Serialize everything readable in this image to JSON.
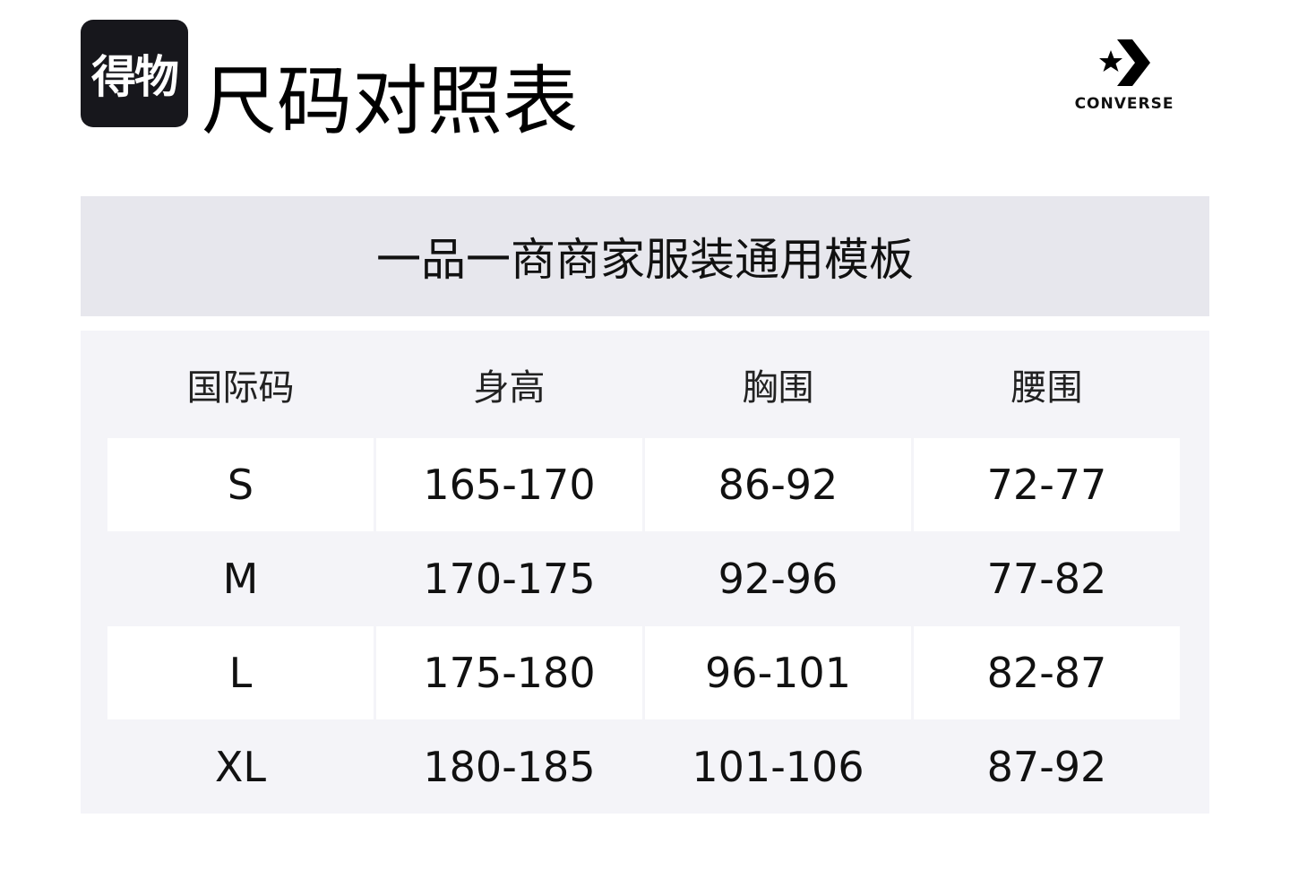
{
  "header": {
    "logo_text": "得物",
    "title": "尺码对照表",
    "brand": "CONVERSE"
  },
  "banner": {
    "text": "一品一商商家服装通用模板"
  },
  "table": {
    "columns": [
      "国际码",
      "身高",
      "胸围",
      "腰围"
    ],
    "rows": [
      [
        "S",
        "165-170",
        "86-92",
        "72-77"
      ],
      [
        "M",
        "170-175",
        "92-96",
        "77-82"
      ],
      [
        "L",
        "175-180",
        "96-101",
        "82-87"
      ],
      [
        "XL",
        "180-185",
        "101-106",
        "87-92"
      ]
    ]
  }
}
